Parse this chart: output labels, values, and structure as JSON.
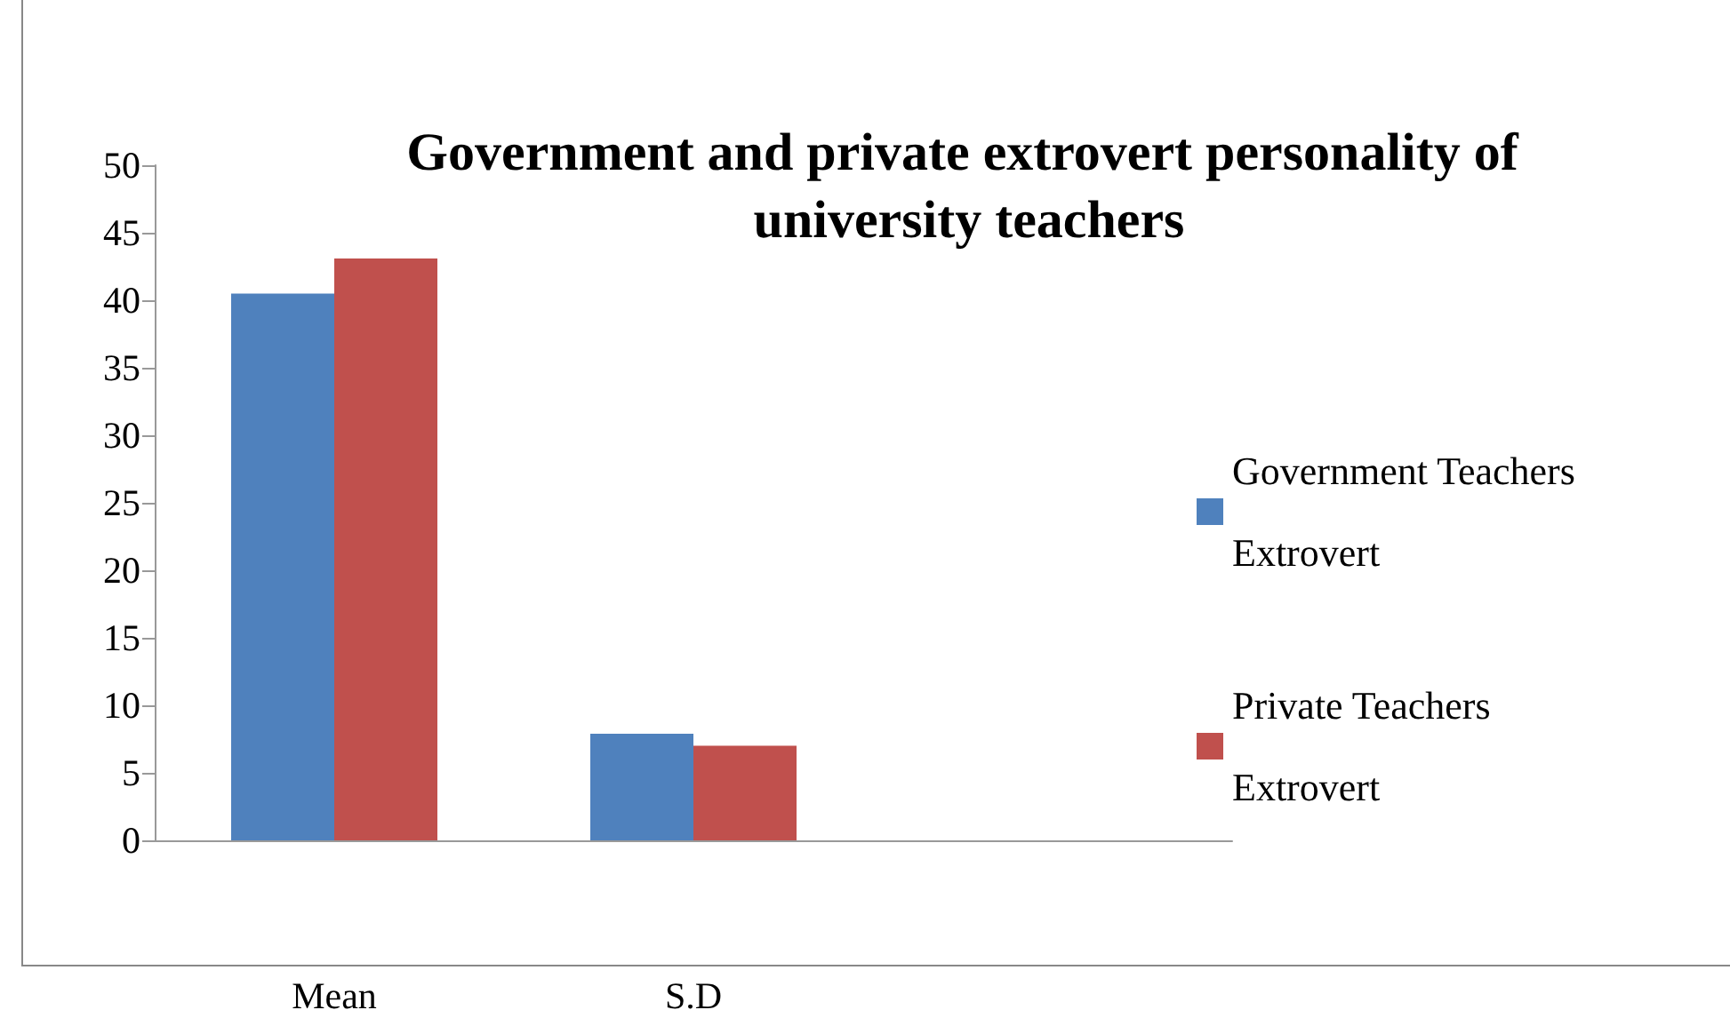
{
  "chart_data": {
    "type": "bar",
    "title": "Government and private extrovert personality of university teachers",
    "categories": [
      "Mean",
      "S.D",
      null
    ],
    "series": [
      {
        "name": "Government Teachers Extrovert",
        "color": "#4f81bd",
        "values": [
          40.5,
          7.9,
          null
        ]
      },
      {
        "name": "Private Teachers Extrovert",
        "color": "#c0504d",
        "values": [
          43.1,
          7.0,
          null
        ]
      }
    ],
    "ylim": [
      0,
      50
    ],
    "yticks": [
      0,
      5,
      10,
      15,
      20,
      25,
      30,
      35,
      40,
      45,
      50
    ],
    "grid": false,
    "legend": "right"
  }
}
